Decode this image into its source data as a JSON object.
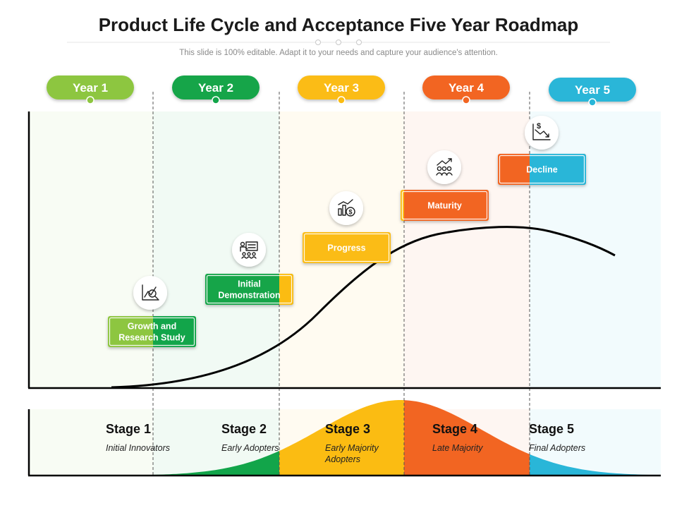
{
  "title": "Product Life Cycle and Acceptance Five Year Roadmap",
  "subtitle": "This slide is 100% editable. Adapt it to your needs and capture your audience's attention.",
  "colors": {
    "year1": "#8dc63f",
    "year2": "#12a54a",
    "year3": "#fbbc12",
    "year4": "#f26522",
    "year5": "#29b6d8"
  },
  "years": [
    {
      "label": "Year 1",
      "color": "#8dc63f"
    },
    {
      "label": "Year 2",
      "color": "#12a54a"
    },
    {
      "label": "Year 3",
      "color": "#fbbc12"
    },
    {
      "label": "Year 4",
      "color": "#f26522"
    },
    {
      "label": "Year 5",
      "color": "#29b6d8"
    }
  ],
  "phases": [
    {
      "label_lines": [
        "Growth and",
        "Research Study"
      ],
      "icon": "research-chart-icon",
      "color_left": "#8dc63f",
      "color_right": "#12a54a"
    },
    {
      "label_lines": [
        "Initial",
        "Demonstration"
      ],
      "icon": "presentation-icon",
      "color_left": "#12a54a",
      "color_right": "#fbbc12"
    },
    {
      "label_lines": [
        "Progress"
      ],
      "icon": "progress-chart-icon",
      "color_left": "#fbbc12",
      "color_right": "#fbbc12"
    },
    {
      "label_lines": [
        "Maturity"
      ],
      "icon": "team-growth-icon",
      "color_left": "#fbbc12",
      "color_right": "#f26522"
    },
    {
      "label_lines": [
        "Decline"
      ],
      "icon": "dollar-decline-icon",
      "color_left": "#f26522",
      "color_right": "#29b6d8"
    }
  ],
  "stages": [
    {
      "title": "Stage 1",
      "desc_lines": [
        "Initial Innovators"
      ]
    },
    {
      "title": "Stage 2",
      "desc_lines": [
        "Early Adopters"
      ]
    },
    {
      "title": "Stage 3",
      "desc_lines": [
        "Early Majority",
        "Adopters"
      ]
    },
    {
      "title": "Stage 4",
      "desc_lines": [
        "Late Majority"
      ]
    },
    {
      "title": "Stage 5",
      "desc_lines": [
        "Final Adopters"
      ]
    }
  ]
}
